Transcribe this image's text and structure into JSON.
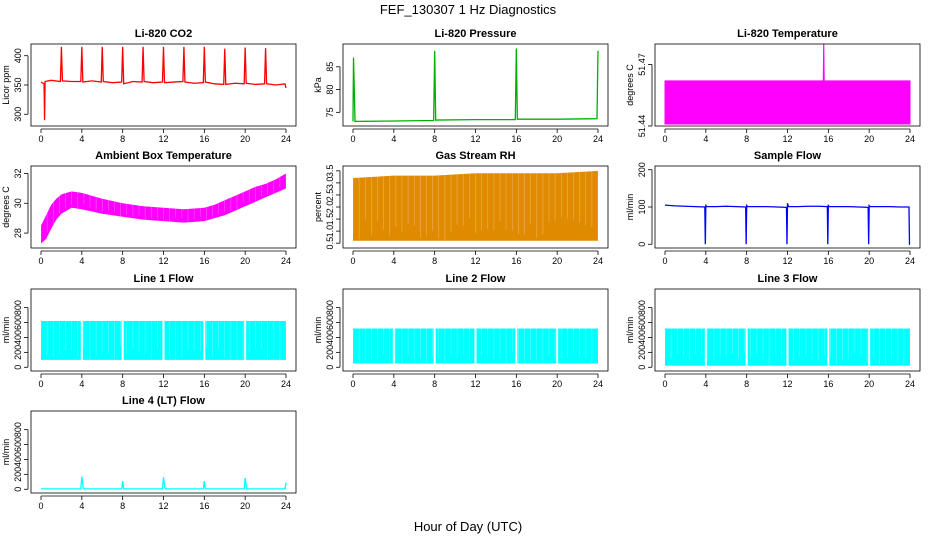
{
  "figure": {
    "title": "FEF_130307  1 Hz Diagnostics",
    "xlabel": "Hour of Day (UTC)"
  },
  "chart_data": [
    {
      "type": "line",
      "title": "Li-820 CO2",
      "ylabel": "Licor ppm",
      "color": "#ff0000",
      "xlim": [
        0,
        24
      ],
      "xticks": [
        0,
        4,
        8,
        12,
        16,
        20,
        24
      ],
      "ylim": [
        280,
        420
      ],
      "yticks": [
        300,
        350,
        400
      ],
      "yticklabels": [
        "300",
        "350",
        "400"
      ],
      "series": [
        {
          "x": [
            0,
            0.3,
            0.35,
            0.4,
            1,
            1.9,
            2,
            2.1,
            3,
            3.9,
            4,
            4.1,
            5,
            5.9,
            6,
            6.1,
            7,
            7.9,
            8,
            8.1,
            9,
            9.9,
            10,
            10.1,
            11,
            11.9,
            12,
            12.1,
            13,
            13.9,
            14,
            14.1,
            15,
            15.9,
            16,
            16.1,
            17,
            17.9,
            18,
            18.1,
            19,
            19.9,
            20,
            20.1,
            21,
            21.9,
            22,
            22.1,
            23,
            23.9,
            24
          ],
          "y": [
            355,
            352,
            290,
            356,
            358,
            356,
            415,
            357,
            356,
            356,
            415,
            355,
            357,
            355,
            415,
            356,
            354,
            355,
            415,
            352,
            356,
            355,
            415,
            356,
            354,
            355,
            415,
            354,
            355,
            356,
            415,
            355,
            353,
            354,
            415,
            355,
            352,
            351,
            412,
            351,
            353,
            352,
            414,
            353,
            351,
            352,
            413,
            352,
            350,
            352,
            345
          ]
        }
      ]
    },
    {
      "type": "line",
      "title": "Li-820 Pressure",
      "ylabel": "kPa",
      "color": "#00b000",
      "xlim": [
        0,
        24
      ],
      "xticks": [
        0,
        4,
        8,
        12,
        16,
        20,
        24
      ],
      "ylim": [
        72,
        90
      ],
      "yticks": [
        75,
        80,
        85
      ],
      "yticklabels": [
        "75",
        "80",
        "85"
      ],
      "series": [
        {
          "x": [
            0,
            0.05,
            0.2,
            4,
            7.9,
            8,
            8.1,
            12,
            15.9,
            16,
            16.1,
            20,
            23.9,
            24
          ],
          "y": [
            73,
            87,
            73,
            73.1,
            73.2,
            88.5,
            73.3,
            73.4,
            73.4,
            89,
            73.5,
            73.5,
            73.6,
            88.5
          ]
        }
      ]
    },
    {
      "type": "area",
      "title": "Li-820 Temperature",
      "ylabel": "degrees C",
      "color": "#ff00ff",
      "xlim": [
        0,
        24
      ],
      "xticks": [
        0,
        4,
        8,
        12,
        16,
        20,
        24
      ],
      "ylim": [
        51.44,
        51.48
      ],
      "yticks": [
        51.44,
        51.47
      ],
      "yticklabels": [
        "51.44",
        "51.47"
      ],
      "series": [
        {
          "x": [
            0,
            15.5,
            15.55,
            15.6,
            24
          ],
          "y": [
            51.462,
            51.462,
            51.483,
            51.462,
            51.462
          ],
          "base": 51.441
        }
      ]
    },
    {
      "type": "area",
      "title": "Ambient Box Temperature",
      "ylabel": "degrees C",
      "color": "#ff00ff",
      "xlim": [
        0,
        24
      ],
      "xticks": [
        0,
        4,
        8,
        12,
        16,
        20,
        24
      ],
      "ylim": [
        27,
        32.5
      ],
      "yticks": [
        28,
        30,
        32
      ],
      "yticklabels": [
        "28",
        "30",
        "32"
      ],
      "series": [
        {
          "x": [
            0,
            0.5,
            1,
            1.5,
            2,
            3,
            4,
            6,
            8,
            10,
            12,
            14,
            16,
            17,
            18,
            19,
            20,
            21,
            22,
            23,
            24
          ],
          "upper": [
            28.5,
            29.2,
            29.9,
            30.3,
            30.6,
            30.8,
            30.7,
            30.3,
            30.0,
            29.8,
            29.7,
            29.6,
            29.7,
            29.9,
            30.2,
            30.5,
            30.8,
            31.1,
            31.3,
            31.6,
            32.0
          ],
          "lower": [
            27.3,
            27.6,
            28.3,
            28.9,
            29.3,
            29.7,
            29.6,
            29.3,
            29.1,
            28.9,
            28.8,
            28.7,
            28.8,
            29.0,
            29.2,
            29.5,
            29.8,
            30.1,
            30.4,
            30.7,
            31.0
          ]
        }
      ]
    },
    {
      "type": "area",
      "title": "Gas Stream RH",
      "ylabel": "percent",
      "color": "#e08a00",
      "xlim": [
        0,
        24
      ],
      "xticks": [
        0,
        4,
        8,
        12,
        16,
        20,
        24
      ],
      "ylim": [
        0.3,
        3.7
      ],
      "yticks": [
        0.5,
        1,
        1.5,
        2,
        2.5,
        3,
        3.5
      ],
      "yticklabels": [
        "0.5",
        "1.0",
        "1.5",
        "2.0",
        "2.5",
        "3.0",
        "3.5"
      ],
      "series": [
        {
          "x": [
            0,
            4,
            8,
            12,
            16,
            20,
            24
          ],
          "upper": [
            3.2,
            3.3,
            3.3,
            3.4,
            3.4,
            3.4,
            3.5
          ],
          "lower": [
            0.6,
            0.6,
            0.6,
            0.6,
            0.6,
            0.6,
            0.6
          ]
        }
      ]
    },
    {
      "type": "line",
      "title": "Sample Flow",
      "ylabel": "ml/min",
      "color": "#0000ff",
      "xlim": [
        0,
        24
      ],
      "xticks": [
        0,
        4,
        8,
        12,
        16,
        20,
        24
      ],
      "ylim": [
        -10,
        210
      ],
      "yticks": [
        0,
        100,
        200
      ],
      "yticklabels": [
        "0",
        "100",
        "200"
      ],
      "series": [
        {
          "x": [
            0,
            1,
            2,
            3,
            3.9,
            3.95,
            4,
            4.1,
            5,
            6,
            7,
            7.9,
            7.95,
            8,
            8.1,
            9,
            10,
            11,
            11.9,
            11.95,
            12,
            12.1,
            13,
            14,
            15,
            15.9,
            15.95,
            16,
            16.1,
            17,
            18,
            19,
            19.9,
            19.95,
            20,
            20.1,
            21,
            22,
            23,
            23.9,
            23.95,
            24
          ],
          "y": [
            105,
            103,
            102,
            101,
            100,
            0,
            104,
            101,
            101,
            102,
            101,
            100,
            0,
            104,
            101,
            101,
            101,
            100,
            99,
            0,
            110,
            101,
            101,
            102,
            102,
            101,
            0,
            104,
            101,
            101,
            101,
            100,
            99,
            0,
            104,
            101,
            101,
            101,
            100,
            100,
            0,
            0
          ]
        }
      ]
    },
    {
      "type": "area",
      "title": "Line 1 Flow",
      "ylabel": "ml/min",
      "color": "#00ffff",
      "xlim": [
        0,
        24
      ],
      "xticks": [
        0,
        4,
        8,
        12,
        16,
        20,
        24
      ],
      "ylim": [
        -50,
        1050
      ],
      "yticks": [
        0,
        200,
        400,
        600,
        800
      ],
      "yticklabels": [
        "0",
        "200",
        "400",
        "600",
        "800"
      ],
      "series": [
        {
          "x": [
            0,
            24
          ],
          "upper": [
            620,
            620
          ],
          "lower": [
            100,
            100
          ],
          "gaps": [
            4,
            8,
            12,
            16,
            20
          ]
        }
      ]
    },
    {
      "type": "area",
      "title": "Line 2 Flow",
      "ylabel": "ml/min",
      "color": "#00ffff",
      "xlim": [
        0,
        24
      ],
      "xticks": [
        0,
        4,
        8,
        12,
        16,
        20,
        24
      ],
      "ylim": [
        -50,
        1050
      ],
      "yticks": [
        0,
        200,
        400,
        600,
        800
      ],
      "yticklabels": [
        "0",
        "200",
        "400",
        "600",
        "800"
      ],
      "series": [
        {
          "x": [
            0,
            24
          ],
          "upper": [
            520,
            520
          ],
          "lower": [
            50,
            50
          ],
          "gaps": [
            4,
            8,
            12,
            16,
            20
          ]
        }
      ]
    },
    {
      "type": "area",
      "title": "Line 3 Flow",
      "ylabel": "ml/min",
      "color": "#00ffff",
      "xlim": [
        0,
        24
      ],
      "xticks": [
        0,
        4,
        8,
        12,
        16,
        20,
        24
      ],
      "ylim": [
        -50,
        1050
      ],
      "yticks": [
        0,
        200,
        400,
        600,
        800
      ],
      "yticklabels": [
        "0",
        "200",
        "400",
        "600",
        "800"
      ],
      "series": [
        {
          "x": [
            0,
            24
          ],
          "upper": [
            520,
            520
          ],
          "lower": [
            20,
            20
          ],
          "gaps": [
            4,
            8,
            12,
            16,
            20
          ]
        }
      ]
    },
    {
      "type": "line",
      "title": "Line 4 (LT) Flow",
      "ylabel": "ml/min",
      "color": "#00ffff",
      "xlim": [
        0,
        24
      ],
      "xticks": [
        0,
        4,
        8,
        12,
        16,
        20,
        24
      ],
      "ylim": [
        -50,
        1050
      ],
      "yticks": [
        0,
        200,
        400,
        600,
        800
      ],
      "yticklabels": [
        "0",
        "200",
        "400",
        "600",
        "800"
      ],
      "series": [
        {
          "x": [
            0,
            3.9,
            4,
            4.15,
            7.9,
            8,
            8.1,
            11.9,
            12,
            12.15,
            15.9,
            16,
            16.1,
            19.9,
            20,
            20.15,
            23.9,
            24
          ],
          "y": [
            5,
            5,
            170,
            5,
            5,
            110,
            5,
            5,
            160,
            5,
            5,
            110,
            5,
            5,
            150,
            5,
            5,
            90
          ]
        }
      ]
    }
  ]
}
